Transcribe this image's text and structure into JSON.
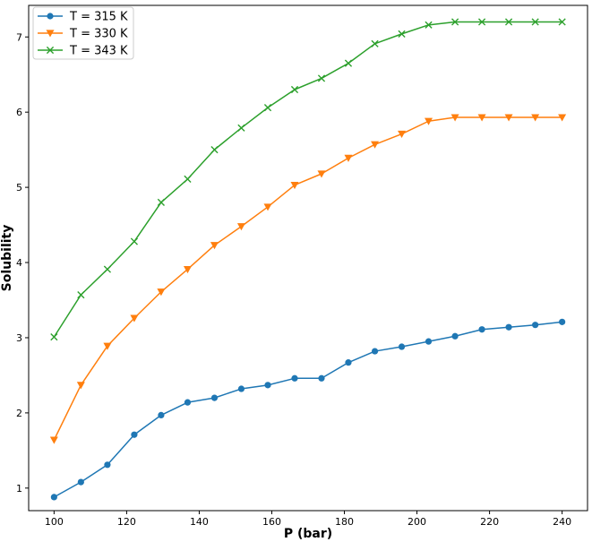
{
  "chart_data": {
    "type": "line",
    "xlabel": "P (bar)",
    "ylabel": "Solubility",
    "xlim": [
      93,
      247
    ],
    "ylim": [
      0.7,
      7.42
    ],
    "x_ticks": [
      100,
      120,
      140,
      160,
      180,
      200,
      220,
      240
    ],
    "y_ticks": [
      1,
      2,
      3,
      4,
      5,
      6,
      7
    ],
    "grid": false,
    "legend_position": "top-left",
    "x": [
      100,
      107.4,
      114.7,
      122.1,
      129.5,
      136.8,
      144.2,
      151.6,
      158.9,
      166.3,
      173.7,
      181.1,
      188.4,
      195.8,
      203.2,
      210.5,
      217.9,
      225.3,
      232.6,
      240
    ],
    "series": [
      {
        "name": "T = 315 K",
        "color": "#1f77b4",
        "marker": "circle",
        "values": [
          0.88,
          1.08,
          1.31,
          1.71,
          1.97,
          2.14,
          2.2,
          2.32,
          2.37,
          2.46,
          2.46,
          2.67,
          2.82,
          2.88,
          2.95,
          3.02,
          3.11,
          3.14,
          3.17,
          3.21
        ]
      },
      {
        "name": "T = 330 K",
        "color": "#ff7f0e",
        "marker": "triangle-down",
        "values": [
          1.64,
          2.37,
          2.89,
          3.26,
          3.61,
          3.91,
          4.23,
          4.48,
          4.74,
          5.03,
          5.18,
          5.39,
          5.57,
          5.71,
          5.88,
          5.93,
          5.93,
          5.93,
          5.93,
          5.93
        ]
      },
      {
        "name": "T = 343 K",
        "color": "#2ca02c",
        "marker": "x",
        "values": [
          3.01,
          3.57,
          3.91,
          4.28,
          4.8,
          5.11,
          5.5,
          5.79,
          6.06,
          6.3,
          6.45,
          6.65,
          6.91,
          7.04,
          7.16,
          7.2,
          7.2,
          7.2,
          7.2,
          7.2
        ]
      }
    ]
  }
}
